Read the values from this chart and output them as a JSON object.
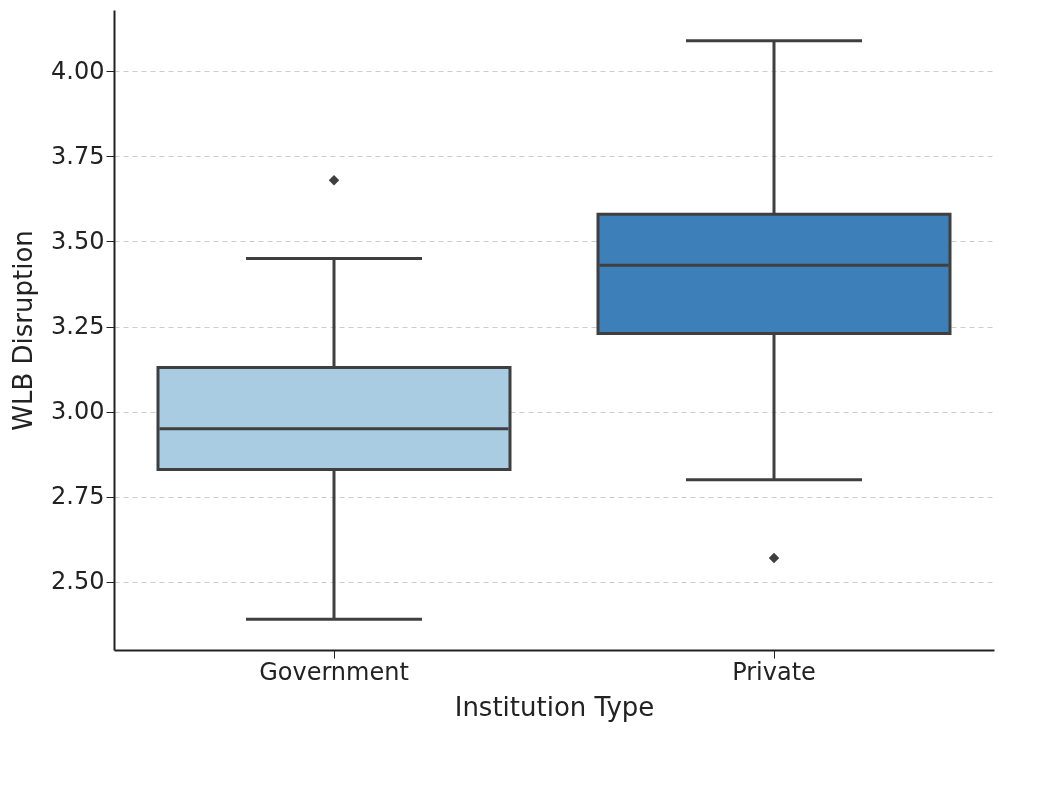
{
  "chart_data": {
    "type": "box",
    "xlabel": "Institution Type",
    "ylabel": "WLB Disruption",
    "categories": [
      "Government",
      "Private"
    ],
    "colors": [
      "#a9cce3",
      "#3d80b9"
    ],
    "boxes": [
      {
        "low": 2.39,
        "q1": 2.83,
        "median": 2.95,
        "q3": 3.13,
        "high": 3.45,
        "outliers": [
          3.68
        ]
      },
      {
        "low": 2.8,
        "q1": 3.23,
        "median": 3.43,
        "q3": 3.58,
        "high": 4.09,
        "outliers": [
          2.57
        ]
      }
    ],
    "ylim": [
      2.3,
      4.18
    ],
    "yticks": [
      {
        "value": 2.5,
        "label": "2.50"
      },
      {
        "value": 2.75,
        "label": "2.75"
      },
      {
        "value": 3,
        "label": "3.00"
      },
      {
        "value": 3.25,
        "label": "3.25"
      },
      {
        "value": 3.5,
        "label": "3.50"
      },
      {
        "value": 3.75,
        "label": "3.75"
      },
      {
        "value": 4,
        "label": "4.00"
      }
    ],
    "grid": "y",
    "marker": "diamond"
  }
}
